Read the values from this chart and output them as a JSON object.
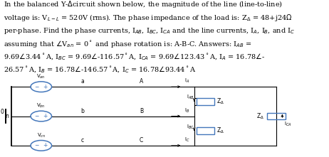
{
  "bg_color": "#ffffff",
  "circuit_color": "#000000",
  "source_color": "#4477bb",
  "box_color": "#4477bb",
  "text_color": "#000000",
  "fig_width": 4.62,
  "fig_height": 2.21,
  "dpi": 100,
  "lines": [
    "In the balanced Y-$\\Delta$circuit shown below, the magnitude of the line (line-to-line)",
    "voltage is: V$_{L-L}$ = 520V (rms). The phase impedance of the load is: Z$_{\\Delta}$ = 48+j24$\\Omega$",
    "per-phase. Find the phase currents, I$_{AB}$, I$_{BC}$, I$_{CA}$ and the line currents, I$_A$, I$_B$, and I$_C$",
    "assuming that $\\angle$V$_{an}$ = 0$^\\circ$ and phase rotation is: A-B-C. Answers: I$_{AB}$ =",
    "9.69$\\angle$3.44$^\\circ$A, I$_{BC}$ = 9.69$\\angle$-116.57$^\\circ$A, I$_{CA}$ = 9.69$\\angle$123.43$^\\circ$A, I$_A$ = 16.78$\\angle$-",
    "26.57$^\\circ$A, I$_B$ = 16.78$\\angle$-146.57$^\\circ$A, I$_C$ = 16.78$\\angle$93.44$^\\circ$A"
  ]
}
